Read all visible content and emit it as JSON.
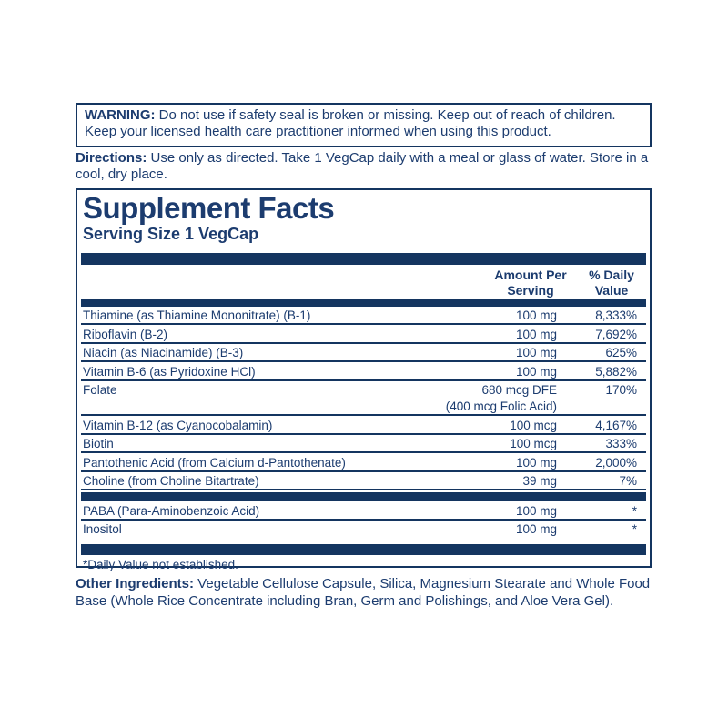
{
  "colors": {
    "navy": "#1c3c6f",
    "bar": "#143560"
  },
  "warning": {
    "label": "WARNING:",
    "text": " Do not use if safety seal is broken or missing. Keep out of reach of children. Keep your licensed health care practitioner informed when using this product."
  },
  "directions": {
    "label": "Directions:",
    "text": " Use only as directed. Take 1 VegCap daily with a meal or glass of water. Store in a cool, dry place."
  },
  "panel": {
    "title": "Supplement Facts",
    "serving_size": "Serving Size 1 VegCap",
    "header": {
      "amount_line1": "Amount Per",
      "amount_line2": "Serving",
      "pct_line1": "% Daily",
      "pct_line2": "Value"
    },
    "rows": [
      {
        "name": "Thiamine (as Thiamine Mononitrate) (B-1)",
        "amount": "100 mg",
        "pct": "8,333%"
      },
      {
        "name": "Riboflavin (B-2)",
        "amount": "100 mg",
        "pct": "7,692%"
      },
      {
        "name": "Niacin (as Niacinamide) (B-3)",
        "amount": "100 mg",
        "pct": "625%"
      },
      {
        "name": "Vitamin B-6 (as Pyridoxine HCl)",
        "amount": "100 mg",
        "pct": "5,882%"
      },
      {
        "name": "Folate",
        "amount": "680 mcg DFE",
        "amount_sub": "(400 mcg Folic Acid)",
        "pct": "170%"
      },
      {
        "name": "Vitamin B-12 (as Cyanocobalamin)",
        "amount": "100 mcg",
        "pct": "4,167%"
      },
      {
        "name": "Biotin",
        "amount": "100 mcg",
        "pct": "333%"
      },
      {
        "name": "Pantothenic Acid (from Calcium d-Pantothenate)",
        "amount": "100 mg",
        "pct": "2,000%"
      },
      {
        "name": "Choline (from Choline Bitartrate)",
        "amount": "39 mg",
        "pct": "7%"
      },
      {
        "name": "PABA (Para-Aminobenzoic Acid)",
        "amount": "100 mg",
        "pct": "*"
      },
      {
        "name": "Inositol",
        "amount": "100 mg",
        "pct": "*"
      }
    ],
    "footnote": "*Daily Value not established."
  },
  "other_ingredients": {
    "label": "Other Ingredients:",
    "text": " Vegetable Cellulose Capsule, Silica, Magnesium Stearate and Whole Food Base (Whole Rice Concentrate including Bran, Germ and Polishings, and Aloe Vera Gel)."
  }
}
